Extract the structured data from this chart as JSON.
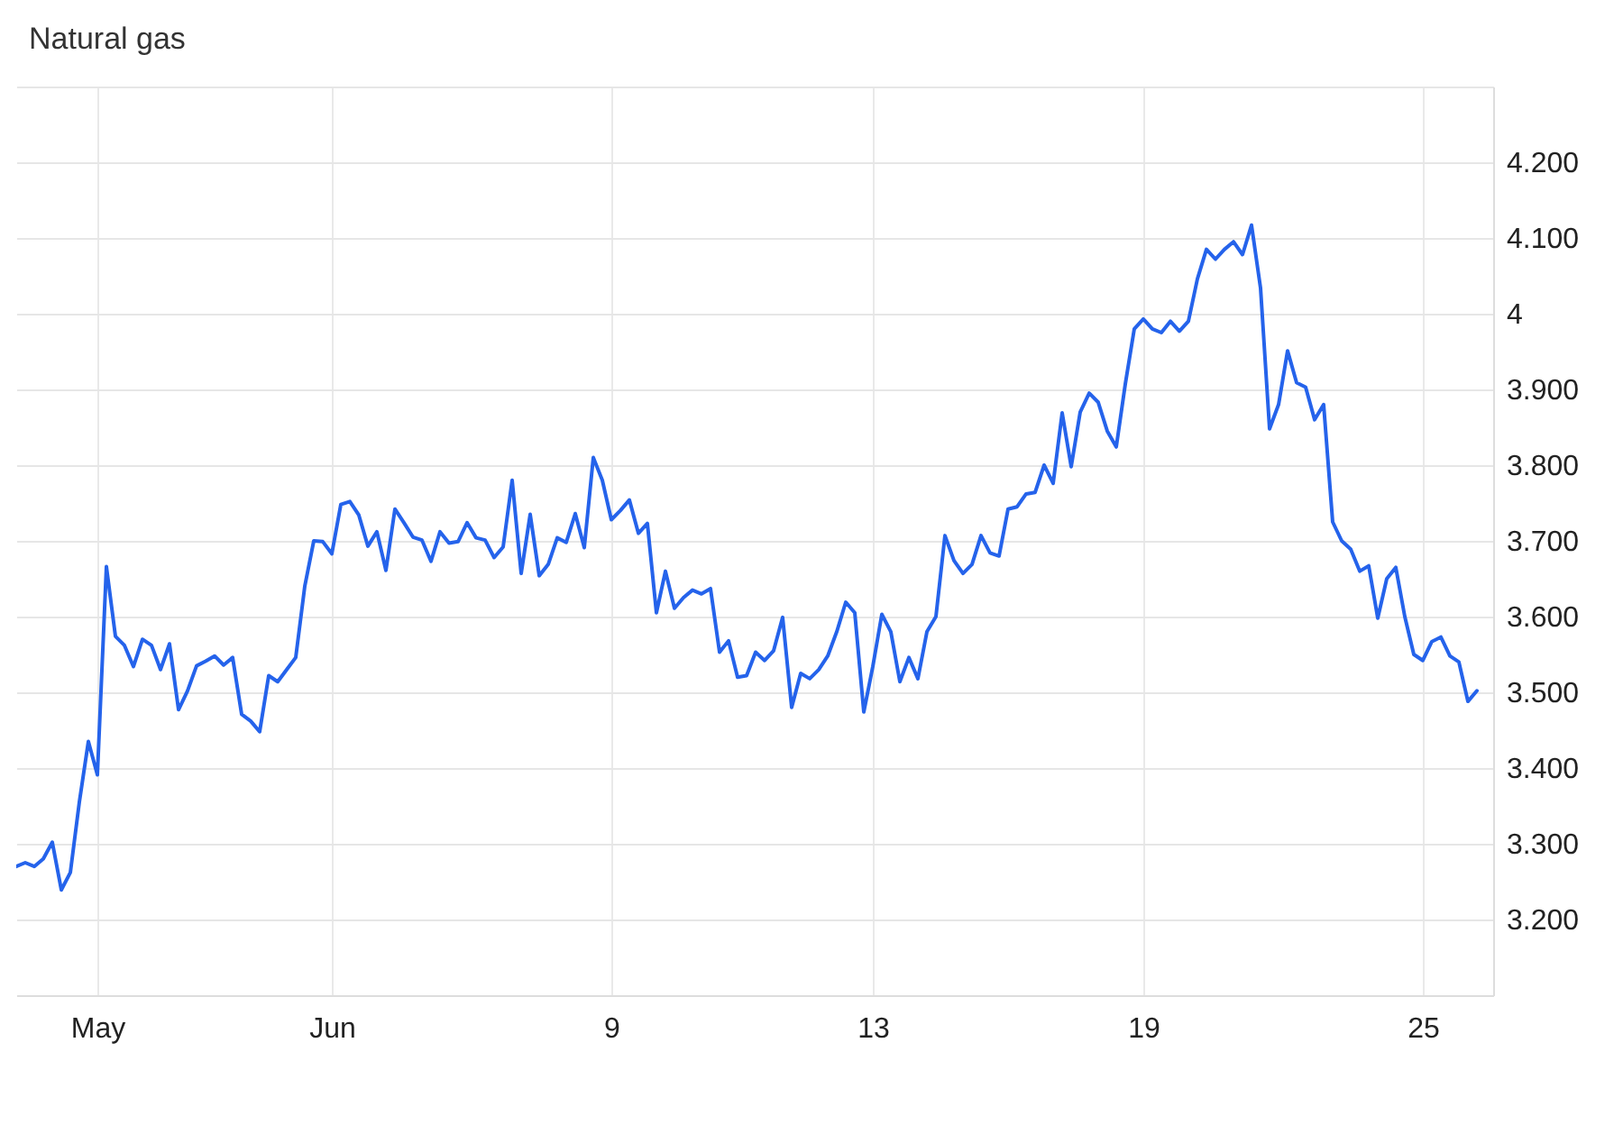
{
  "chart_data": {
    "type": "line",
    "title": "Natural gas",
    "color": "#2563eb",
    "grid": true,
    "categories": [
      null,
      null,
      null,
      null,
      null,
      null,
      null,
      null,
      null,
      "May",
      null,
      null,
      null,
      null,
      null,
      null,
      null,
      null,
      null,
      null,
      null,
      null,
      null,
      null,
      null,
      null,
      null,
      null,
      null,
      null,
      null,
      null,
      null,
      null,
      null,
      "Jun",
      null,
      null,
      null,
      null,
      null,
      null,
      null,
      null,
      null,
      null,
      null,
      null,
      null,
      null,
      null,
      null,
      null,
      null,
      null,
      null,
      null,
      null,
      null,
      null,
      null,
      null,
      null,
      null,
      null,
      null,
      "9",
      null,
      null,
      null,
      null,
      null,
      null,
      null,
      null,
      null,
      null,
      null,
      null,
      null,
      null,
      null,
      null,
      null,
      null,
      null,
      null,
      null,
      null,
      null,
      null,
      null,
      null,
      null,
      null,
      "13",
      null,
      null,
      null,
      null,
      null,
      null,
      null,
      null,
      null,
      null,
      null,
      null,
      null,
      null,
      null,
      null,
      null,
      null,
      null,
      null,
      null,
      null,
      null,
      null,
      null,
      null,
      null,
      null,
      null,
      "19",
      null,
      null,
      null,
      null,
      null,
      null,
      null,
      null,
      null,
      null,
      null,
      null,
      null,
      null,
      null,
      null,
      null,
      null,
      null,
      null,
      null,
      null,
      null,
      null,
      null,
      null,
      null,
      null,
      null,
      null,
      "25",
      null,
      null,
      null,
      null,
      null,
      null
    ],
    "ylim": [
      3.1,
      4.3
    ],
    "yticks": [
      {
        "value": 3.1,
        "label": null
      },
      {
        "value": 3.2,
        "label": "3.200"
      },
      {
        "value": 3.3,
        "label": "3.300"
      },
      {
        "value": 3.4,
        "label": "3.400"
      },
      {
        "value": 3.5,
        "label": "3.500"
      },
      {
        "value": 3.6,
        "label": "3.600"
      },
      {
        "value": 3.7,
        "label": "3.700"
      },
      {
        "value": 3.8,
        "label": "3.800"
      },
      {
        "value": 3.9,
        "label": "3.900"
      },
      4,
      {
        "value": 4.1,
        "label": "4.100"
      },
      {
        "value": 4.2,
        "label": "4.200"
      },
      {
        "value": 4.3,
        "label": null
      }
    ],
    "values": [
      3.27,
      3.275,
      3.27,
      3.28,
      3.302,
      3.239,
      3.262,
      3.355,
      3.435,
      3.391,
      3.666,
      3.574,
      3.562,
      3.534,
      3.57,
      3.562,
      3.53,
      3.564,
      3.477,
      3.502,
      3.535,
      3.541,
      3.548,
      3.536,
      3.546,
      3.471,
      3.462,
      3.448,
      3.522,
      3.514,
      3.53,
      3.546,
      3.64,
      3.7,
      3.699,
      3.683,
      3.748,
      3.752,
      3.734,
      3.693,
      3.712,
      3.661,
      3.742,
      3.724,
      3.705,
      3.701,
      3.673,
      3.712,
      3.697,
      3.699,
      3.724,
      3.704,
      3.701,
      3.678,
      3.692,
      3.78,
      3.657,
      3.735,
      3.654,
      3.669,
      3.704,
      3.698,
      3.736,
      3.691,
      3.81,
      3.78,
      3.728,
      3.74,
      3.754,
      3.71,
      3.723,
      3.605,
      3.66,
      3.611,
      3.625,
      3.635,
      3.63,
      3.637,
      3.553,
      3.568,
      3.52,
      3.522,
      3.553,
      3.542,
      3.555,
      3.599,
      3.48,
      3.525,
      3.518,
      3.53,
      3.548,
      3.58,
      3.619,
      3.605,
      3.474,
      3.534,
      3.603,
      3.58,
      3.514,
      3.546,
      3.518,
      3.58,
      3.6,
      3.707,
      3.674,
      3.657,
      3.669,
      3.707,
      3.684,
      3.68,
      3.742,
      3.745,
      3.762,
      3.764,
      3.8,
      3.776,
      3.869,
      3.798,
      3.87,
      3.895,
      3.883,
      3.845,
      3.824,
      3.907,
      3.98,
      3.993,
      3.98,
      3.975,
      3.99,
      3.977,
      3.99,
      4.046,
      4.085,
      4.072,
      4.085,
      4.095,
      4.078,
      4.117,
      4.034,
      3.848,
      3.88,
      3.951,
      3.909,
      3.903,
      3.86,
      3.88,
      3.725,
      3.7,
      3.689,
      3.66,
      3.667,
      3.598,
      3.65,
      3.665,
      3.6,
      3.55,
      3.542,
      3.567,
      3.573,
      3.548,
      3.54,
      3.488,
      3.502
    ]
  }
}
